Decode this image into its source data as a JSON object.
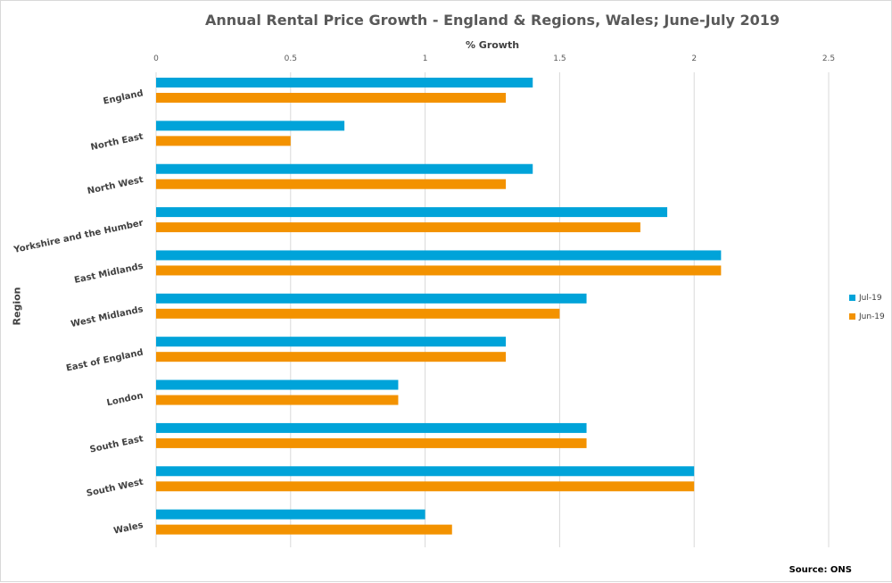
{
  "chart_data": {
    "type": "bar",
    "orientation": "horizontal",
    "title": "Annual Rental Price Growth - England & Regions, Wales; June-July 2019",
    "xlabel": "% Growth",
    "ylabel": "Region",
    "xlim": [
      0,
      2.5
    ],
    "x_ticks": [
      "0",
      "0.5",
      "1",
      "1.5",
      "2",
      "2.5"
    ],
    "x_tick_values": [
      0,
      0.5,
      1,
      1.5,
      2,
      2.5
    ],
    "grid": true,
    "legend_position": "right",
    "categories": [
      "England",
      "North East",
      "North West",
      "Yorkshire and the Humber",
      "East Midlands",
      "West Midlands",
      "East of England",
      "London",
      "South East",
      "South West",
      "Wales"
    ],
    "series": [
      {
        "name": "Jul-19",
        "color": "#00a3d9",
        "values": [
          1.4,
          0.7,
          1.4,
          1.9,
          2.1,
          1.6,
          1.3,
          0.9,
          1.6,
          2.0,
          1.0
        ]
      },
      {
        "name": "Jun-19",
        "color": "#f39200",
        "values": [
          1.3,
          0.5,
          1.3,
          1.8,
          2.1,
          1.5,
          1.3,
          0.9,
          1.6,
          2.0,
          1.1
        ]
      }
    ],
    "source": "Source: ONS"
  }
}
